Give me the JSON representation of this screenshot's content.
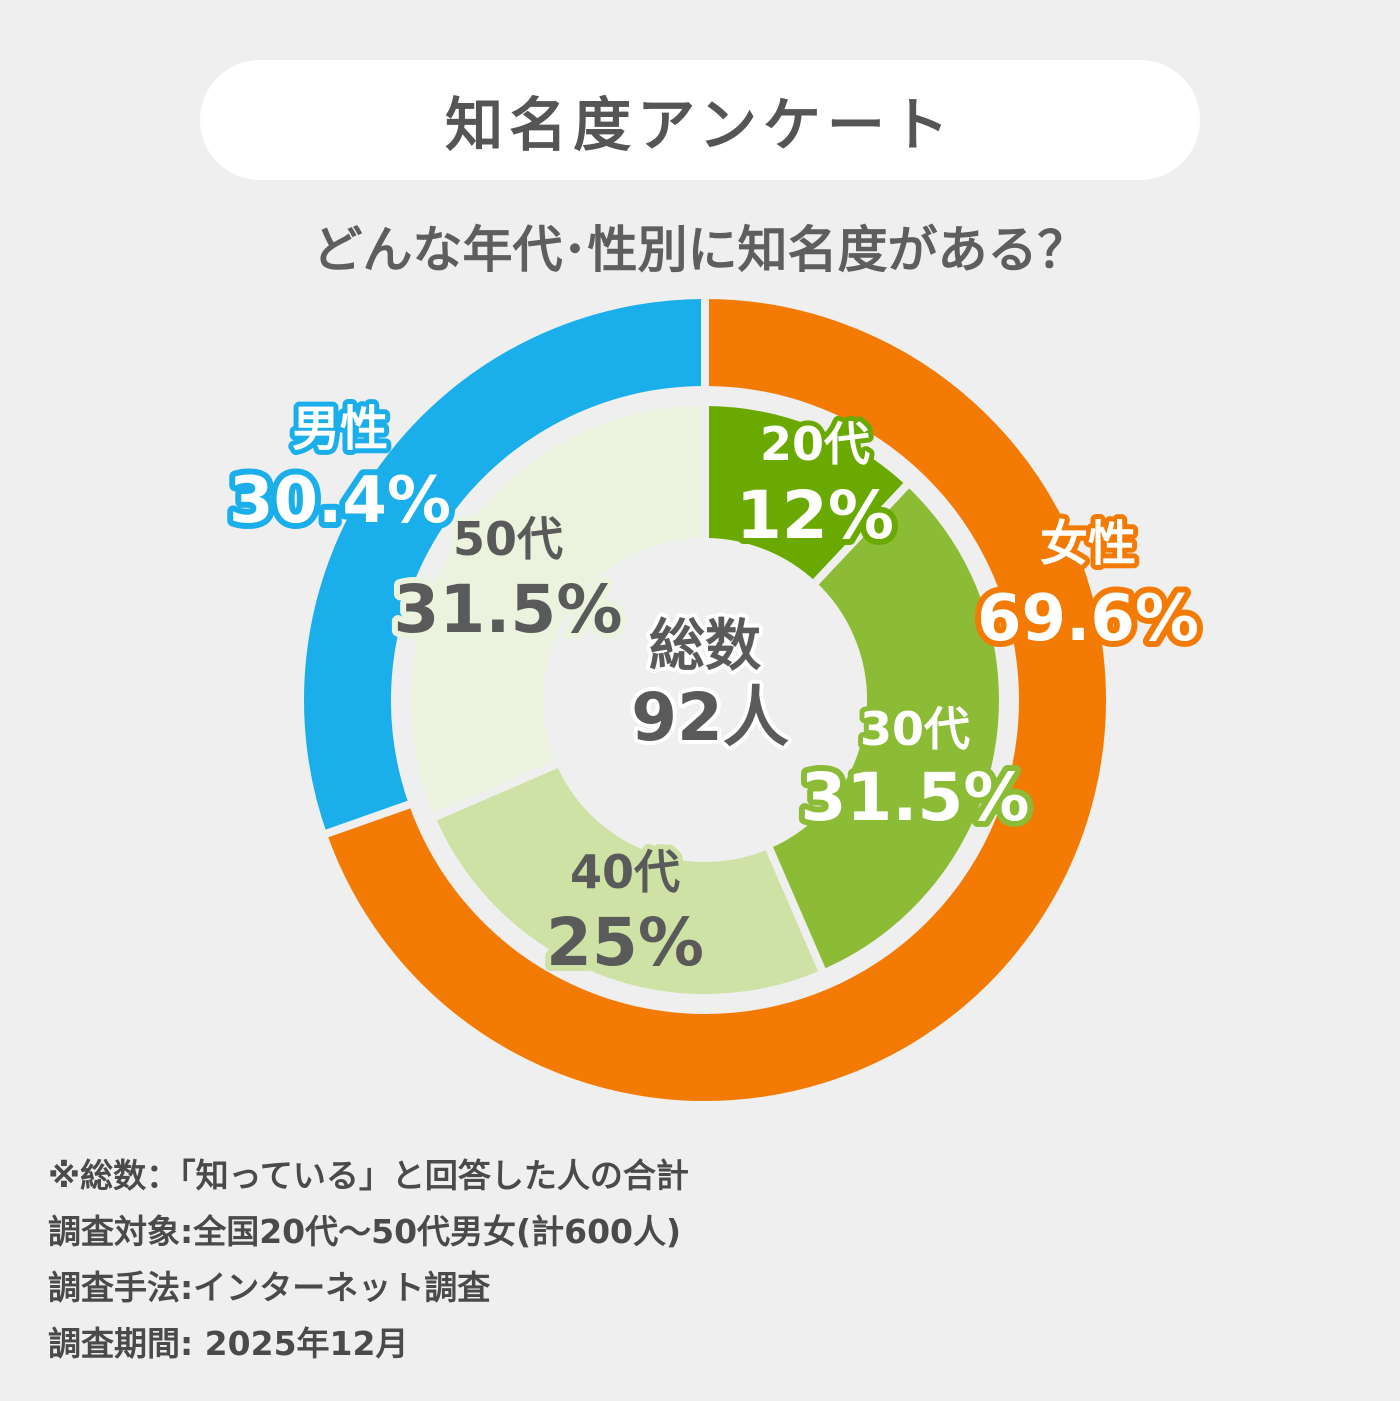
{
  "title": "知名度アンケート",
  "subtitle": "どんな年代･性別に知名度がある？",
  "colors": {
    "male": "#1aaeeb",
    "female": "#f47b03",
    "age20": "#6aa900",
    "age30": "#8cbb35",
    "age40": "#cde2a4",
    "age50": "#ebf3df",
    "text_gray": "#5a5a5a",
    "background": "#efefef"
  },
  "chart_data": [
    {
      "type": "pie",
      "ring": "outer",
      "categories": [
        "女性",
        "男性"
      ],
      "values": [
        69.6,
        30.4
      ],
      "labels": [
        {
          "name": "女性",
          "value": "69.6%"
        },
        {
          "name": "男性",
          "value": "30.4%"
        }
      ]
    },
    {
      "type": "pie",
      "ring": "inner",
      "categories": [
        "20代",
        "30代",
        "40代",
        "50代"
      ],
      "values": [
        12,
        31.5,
        25,
        31.5
      ],
      "labels": [
        {
          "name": "20代",
          "value": "12%"
        },
        {
          "name": "30代",
          "value": "31.5%"
        },
        {
          "name": "40代",
          "value": "25%"
        },
        {
          "name": "50代",
          "value": "31.5%"
        }
      ]
    }
  ],
  "center": {
    "label": "総数",
    "value": "92人"
  },
  "notes": [
    "※総数：「知っている」と回答した人の合計",
    "調査対象:全国20代～50代男女(計600人)",
    "調査手法:インターネット調査",
    "調査期間: 2025年12月"
  ]
}
